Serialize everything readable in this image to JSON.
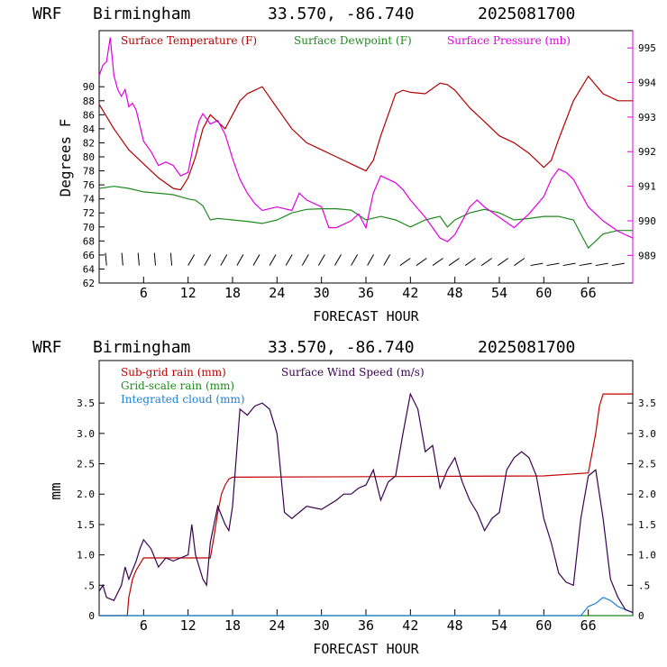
{
  "colors": {
    "temperature": "#b00000",
    "dewpoint": "#1f8a1f",
    "pressure": "#e000e0",
    "subgrid_rain": "#c00000",
    "gridscale_rain": "#1f8a1f",
    "cloud": "#1e7fd8",
    "wind_speed": "#3a0050",
    "axis": "#000000"
  },
  "chart_data": [
    {
      "type": "line",
      "header": {
        "model": "WRF",
        "location": "Birmingham",
        "coords": "33.570, -86.740",
        "run": "2025081700"
      },
      "xlabel": "FORECAST HOUR",
      "ylabel": "Degrees F",
      "xlim": [
        0,
        72
      ],
      "ylim": [
        62,
        98
      ],
      "y2lim": [
        988.2,
        995.5
      ],
      "x_ticks": [
        6,
        12,
        18,
        24,
        30,
        36,
        42,
        48,
        54,
        60,
        66
      ],
      "x_tick_labels": [
        "6",
        "12",
        "18",
        "24",
        "30",
        "36",
        "42",
        "48",
        "54",
        "60",
        "66"
      ],
      "y_ticks": [
        62,
        64,
        66,
        68,
        70,
        72,
        74,
        76,
        78,
        80,
        82,
        84,
        86,
        88,
        90
      ],
      "y_tick_labels": [
        "62",
        "64",
        "66",
        "68",
        "70",
        "72",
        "74",
        "76",
        "78",
        "80",
        "82",
        "84",
        "86",
        "88",
        "90"
      ],
      "y2_ticks": [
        989,
        990,
        991,
        992,
        993,
        994,
        995
      ],
      "y2_tick_labels": [
        "989",
        "990",
        "991",
        "992",
        "993",
        "994",
        "995"
      ],
      "legend": [
        "Surface Temperature (F)",
        "Surface Dewpoint (F)",
        "Surface Pressure (mb)"
      ],
      "legend_position": "top",
      "wind_barbs_row_y": 64.5,
      "series": [
        {
          "name": "Surface Temperature (F)",
          "axis": "left",
          "x": [
            0,
            2,
            4,
            6,
            8,
            10,
            11,
            12,
            13,
            14,
            15,
            16,
            17,
            18,
            19,
            20,
            21,
            22,
            24,
            26,
            28,
            30,
            32,
            34,
            36,
            37,
            38,
            39,
            40,
            41,
            42,
            44,
            46,
            47,
            48,
            50,
            52,
            54,
            56,
            58,
            59,
            60,
            61,
            62,
            64,
            66,
            68,
            70,
            72
          ],
          "y": [
            87.5,
            84,
            81,
            79,
            77,
            75.5,
            75.3,
            77,
            80,
            84,
            86,
            85,
            84,
            86,
            88,
            89,
            89.5,
            90,
            87,
            84,
            82,
            81,
            80,
            79,
            78,
            79.5,
            83,
            86,
            89,
            89.5,
            89.2,
            89,
            90.5,
            90.3,
            89.5,
            87,
            85,
            83,
            82,
            80.5,
            79.5,
            78.5,
            79.5,
            82.5,
            88,
            91.5,
            89,
            88,
            88
          ]
        },
        {
          "name": "Surface Dewpoint (F)",
          "axis": "left",
          "x": [
            0,
            2,
            4,
            6,
            8,
            10,
            12,
            13,
            14,
            15,
            16,
            18,
            20,
            22,
            24,
            26,
            28,
            30,
            32,
            34,
            36,
            38,
            40,
            42,
            44,
            46,
            47,
            48,
            50,
            52,
            54,
            56,
            58,
            60,
            62,
            64,
            65,
            66,
            68,
            70,
            72
          ],
          "y": [
            75.5,
            75.8,
            75.5,
            75,
            74.8,
            74.6,
            74,
            73.8,
            73,
            71,
            71.2,
            71,
            70.8,
            70.5,
            71,
            72,
            72.5,
            72.6,
            72.6,
            72.4,
            71,
            71.5,
            71,
            70,
            71,
            71.5,
            70,
            71,
            72,
            72.5,
            72,
            71,
            71.2,
            71.5,
            71.5,
            71,
            69,
            67,
            69,
            69.5,
            69.5
          ]
        },
        {
          "name": "Surface Pressure (mb)",
          "axis": "right",
          "x": [
            0,
            0.5,
            1,
            1.5,
            2,
            2.5,
            3,
            3.5,
            4,
            4.5,
            5,
            6,
            7,
            8,
            9,
            10,
            11,
            12,
            13,
            13.5,
            14,
            15,
            16,
            17,
            18,
            19,
            20,
            21,
            22,
            24,
            26,
            27,
            28,
            30,
            31,
            32,
            34,
            35,
            36,
            37,
            38,
            39,
            40,
            41,
            42,
            44,
            46,
            47,
            48,
            50,
            51,
            52,
            54,
            56,
            58,
            60,
            61,
            62,
            63,
            64,
            65,
            66,
            68,
            70,
            72
          ],
          "y": [
            994.2,
            994.5,
            994.6,
            995.3,
            994.2,
            993.8,
            993.6,
            993.8,
            993.3,
            993.4,
            993.2,
            992.3,
            992,
            991.6,
            991.7,
            991.6,
            991.3,
            991.4,
            992.5,
            992.9,
            993.1,
            992.8,
            992.9,
            992.5,
            991.8,
            991.2,
            990.8,
            990.5,
            990.3,
            990.4,
            990.3,
            990.8,
            990.6,
            990.4,
            989.8,
            989.8,
            990,
            990.2,
            989.8,
            990.8,
            991.3,
            991.2,
            991.1,
            990.9,
            990.6,
            990.1,
            989.5,
            989.4,
            989.6,
            990.4,
            990.6,
            990.4,
            990.1,
            989.8,
            990.2,
            990.7,
            991.2,
            991.5,
            991.4,
            991.2,
            990.8,
            990.4,
            990,
            989.7,
            989.5
          ]
        }
      ]
    },
    {
      "type": "line",
      "header": {
        "model": "WRF",
        "location": "Birmingham",
        "coords": "33.570, -86.740",
        "run": "2025081700"
      },
      "xlabel": "FORECAST HOUR",
      "ylabel": "mm",
      "xlim": [
        0,
        72
      ],
      "ylim": [
        0,
        4.2
      ],
      "x_ticks": [
        6,
        12,
        18,
        24,
        30,
        36,
        42,
        48,
        54,
        60,
        66
      ],
      "x_tick_labels": [
        "6",
        "12",
        "18",
        "24",
        "30",
        "36",
        "42",
        "48",
        "54",
        "60",
        "66"
      ],
      "y_ticks": [
        0,
        0.5,
        1,
        1.5,
        2,
        2.5,
        3,
        3.5
      ],
      "y_tick_labels": [
        "0",
        ".5",
        "1.0",
        "1.5",
        "2.0",
        "2.5",
        "3.0",
        "3.5"
      ],
      "y2_ticks": [
        0,
        0.5,
        1,
        1.5,
        2,
        2.5,
        3,
        3.5
      ],
      "y2_tick_labels": [
        "0",
        ".5",
        "1.0",
        "1.5",
        "2.0",
        "2.5",
        "3.0",
        "3.5"
      ],
      "legend": [
        "Sub-grid rain (mm)",
        "Grid-scale rain (mm)",
        "Integrated cloud (mm)",
        "Surface Wind Speed (m/s)"
      ],
      "legend_position": "top-left",
      "series": [
        {
          "name": "Sub-grid rain (mm)",
          "x": [
            0,
            3.8,
            4,
            4.5,
            5,
            5.5,
            6,
            15,
            15.5,
            16,
            16.5,
            17,
            17.5,
            18,
            40,
            60,
            66,
            67,
            67.5,
            68,
            72
          ],
          "y": [
            0,
            0,
            0.3,
            0.6,
            0.75,
            0.85,
            0.95,
            0.95,
            1.3,
            1.7,
            2.0,
            2.15,
            2.25,
            2.28,
            2.29,
            2.3,
            2.35,
            3,
            3.45,
            3.65,
            3.65
          ]
        },
        {
          "name": "Grid-scale rain (mm)",
          "x": [
            0,
            72
          ],
          "y": [
            0,
            0
          ]
        },
        {
          "name": "Integrated cloud (mm)",
          "x": [
            0,
            65,
            66,
            67,
            68,
            69,
            70,
            71,
            72
          ],
          "y": [
            0,
            0,
            0.15,
            0.2,
            0.3,
            0.25,
            0.15,
            0.1,
            0.05
          ]
        },
        {
          "name": "Surface Wind Speed (m/s)",
          "x": [
            0,
            0.5,
            1,
            2,
            3,
            3.5,
            4,
            5,
            5.5,
            6,
            7,
            8,
            9,
            10,
            11,
            12,
            12.5,
            13,
            14,
            14.5,
            15,
            15.5,
            16,
            17,
            17.5,
            18,
            19,
            20,
            21,
            22,
            23,
            24,
            25,
            26,
            27,
            28,
            30,
            32,
            33,
            34,
            35,
            36,
            37,
            38,
            39,
            40,
            41,
            42,
            43,
            44,
            45,
            46,
            47,
            48,
            49,
            50,
            51,
            52,
            53,
            54,
            55,
            56,
            57,
            58,
            59,
            60,
            61,
            62,
            63,
            64,
            65,
            66,
            67,
            68,
            69,
            70,
            71,
            72
          ],
          "y": [
            0.4,
            0.5,
            0.3,
            0.25,
            0.5,
            0.8,
            0.6,
            0.9,
            1.1,
            1.25,
            1.1,
            0.8,
            0.95,
            0.9,
            0.95,
            1.0,
            1.5,
            1.0,
            0.6,
            0.5,
            1.2,
            1.5,
            1.8,
            1.5,
            1.4,
            1.8,
            3.4,
            3.3,
            3.45,
            3.5,
            3.4,
            3.0,
            1.7,
            1.6,
            1.7,
            1.8,
            1.75,
            1.9,
            2.0,
            2.0,
            2.1,
            2.15,
            2.4,
            1.9,
            2.2,
            2.3,
            3.0,
            3.65,
            3.4,
            2.7,
            2.8,
            2.1,
            2.4,
            2.6,
            2.2,
            1.9,
            1.7,
            1.4,
            1.6,
            1.7,
            2.4,
            2.6,
            2.7,
            2.6,
            2.3,
            1.6,
            1.2,
            0.7,
            0.55,
            0.5,
            1.6,
            2.3,
            2.4,
            1.6,
            0.6,
            0.3,
            0.1,
            0.05
          ]
        }
      ]
    }
  ]
}
